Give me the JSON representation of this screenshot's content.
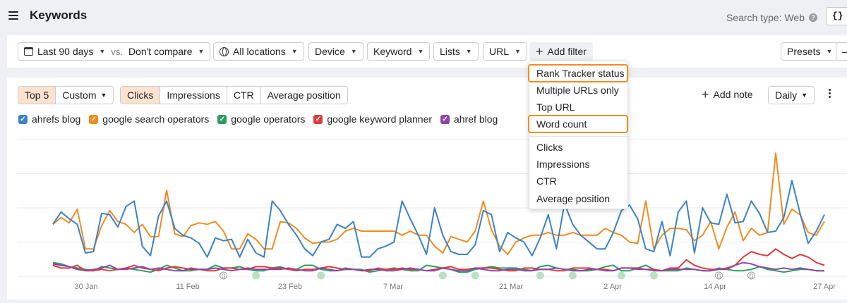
{
  "header": {
    "title": "Keywords",
    "search_type": "Search type: Web",
    "help": "?",
    "api_label": "{}"
  },
  "filters": {
    "date_range": "Last 90 days",
    "vs": "vs.",
    "compare": "Don't compare",
    "locations": "All locations",
    "device": "Device",
    "keyword": "Keyword",
    "lists": "Lists",
    "url": "URL",
    "add_filter": "Add filter",
    "presets": "Presets"
  },
  "add_filter_menu": {
    "items": [
      "Rank Tracker status",
      "Multiple URLs only",
      "Top URL",
      "Word count",
      "Clicks",
      "Impressions",
      "CTR",
      "Average position"
    ],
    "highlighted": [
      "Rank Tracker status",
      "Word count"
    ],
    "highlight_color": "#f28c1f"
  },
  "chart_controls": {
    "top_tabs": [
      "Top 5",
      "Custom"
    ],
    "top_active": "Top 5",
    "metric_tabs": [
      "Clicks",
      "Impressions",
      "CTR",
      "Average position"
    ],
    "metric_active": "Clicks",
    "add_note": "Add note",
    "interval": "Daily",
    "active_color": "#fbe3cf"
  },
  "chart_data": {
    "type": "line",
    "x_ticks": [
      "30 Jan",
      "11 Feb",
      "23 Feb",
      "7 Mar",
      "21 Mar",
      "2 Apr",
      "14 Apr",
      "27 Apr"
    ],
    "ylim": [
      0,
      100
    ],
    "grid": true,
    "legend_position": "top-left",
    "series": [
      {
        "name": "ahrefs blog",
        "color": "#3b82c6",
        "values": [
          38,
          47,
          42,
          38,
          17,
          18,
          46,
          45,
          36,
          51,
          55,
          22,
          15,
          44,
          55,
          35,
          30,
          28,
          24,
          14,
          28,
          26,
          27,
          14,
          27,
          17,
          14,
          55,
          48,
          38,
          30,
          20,
          15,
          25,
          27,
          38,
          35,
          40,
          14,
          14,
          20,
          22,
          25,
          55,
          42,
          30,
          16,
          50,
          30,
          18,
          16,
          16,
          23,
          48,
          45,
          18,
          32,
          28,
          25,
          15,
          28,
          45,
          20,
          53,
          38,
          30,
          25,
          20,
          20,
          32,
          48,
          52,
          42,
          20,
          18,
          40,
          15,
          47,
          55,
          17,
          50,
          39,
          38,
          60,
          39,
          40,
          55,
          46,
          32,
          33,
          43,
          70,
          46,
          24,
          33,
          45
        ]
      },
      {
        "name": "google search operators",
        "color": "#f28c1f",
        "values": [
          38,
          43,
          39,
          49,
          20,
          20,
          37,
          48,
          40,
          38,
          32,
          38,
          29,
          29,
          63,
          31,
          29,
          37,
          39,
          38,
          40,
          33,
          20,
          20,
          31,
          27,
          20,
          20,
          40,
          39,
          35,
          28,
          24,
          25,
          25,
          27,
          33,
          35,
          33,
          33,
          33,
          33,
          33,
          30,
          33,
          30,
          30,
          22,
          17,
          29,
          27,
          25,
          33,
          55,
          34,
          22,
          16,
          25,
          28,
          30,
          30,
          32,
          30,
          30,
          32,
          30,
          30,
          30,
          35,
          32,
          30,
          25,
          24,
          55,
          20,
          30,
          35,
          35,
          34,
          26,
          30,
          40,
          20,
          36,
          47,
          26,
          35,
          30,
          32,
          90,
          38,
          49,
          45,
          32,
          30,
          40
        ]
      },
      {
        "name": "google operators",
        "color": "#2a9d5c",
        "values": [
          10,
          9,
          7,
          6,
          5,
          4,
          7,
          6,
          5,
          6,
          5,
          4,
          3,
          5,
          8,
          6,
          4,
          4,
          5,
          5,
          8,
          6,
          6,
          7,
          5,
          4,
          4,
          6,
          7,
          5,
          5,
          8,
          8,
          5,
          4,
          4,
          6,
          5,
          5,
          3,
          4,
          5,
          6,
          5,
          4,
          4,
          8,
          7,
          6,
          5,
          3,
          3,
          5,
          6,
          7,
          6,
          6,
          6,
          5,
          4,
          7,
          8,
          6,
          5,
          5,
          4,
          4,
          5,
          7,
          8,
          4,
          4,
          6,
          8,
          5,
          4,
          4,
          4,
          6,
          5,
          4,
          4,
          6,
          5,
          4,
          4,
          5,
          7,
          5,
          4,
          3,
          4,
          5,
          5,
          4,
          4
        ]
      },
      {
        "name": "google keyword planner",
        "color": "#e03a3a",
        "values": [
          8,
          6,
          6,
          8,
          4,
          4,
          5,
          4,
          5,
          6,
          8,
          6,
          5,
          4,
          6,
          7,
          6,
          5,
          5,
          4,
          4,
          6,
          6,
          5,
          5,
          7,
          7,
          6,
          6,
          5,
          4,
          5,
          5,
          6,
          7,
          6,
          5,
          5,
          4,
          4,
          6,
          5,
          5,
          6,
          5,
          5,
          4,
          5,
          6,
          7,
          5,
          5,
          6,
          6,
          6,
          5,
          4,
          4,
          6,
          6,
          5,
          5,
          4,
          4,
          6,
          6,
          6,
          5,
          5,
          4,
          6,
          6,
          6,
          5,
          5,
          4,
          6,
          6,
          12,
          8,
          6,
          5,
          5,
          6,
          8,
          14,
          18,
          16,
          15,
          20,
          16,
          13,
          16,
          14,
          10,
          8
        ]
      },
      {
        "name": "ahref blog",
        "color": "#8e44ad",
        "values": [
          9,
          8,
          7,
          5,
          4,
          5,
          6,
          8,
          5,
          5,
          6,
          7,
          5,
          6,
          5,
          4,
          4,
          6,
          5,
          5,
          6,
          5,
          4,
          5,
          6,
          5,
          5,
          5,
          5,
          6,
          5,
          4,
          4,
          6,
          5,
          4,
          5,
          5,
          4,
          5,
          5,
          4,
          4,
          5,
          6,
          5,
          4,
          4,
          6,
          5,
          4,
          4,
          6,
          5,
          4,
          4,
          5,
          5,
          4,
          4,
          5,
          5,
          6,
          5,
          4,
          4,
          5,
          5,
          4,
          4,
          6,
          6,
          5,
          5,
          4,
          4,
          5,
          5,
          5,
          5,
          4,
          4,
          5,
          5,
          8,
          10,
          9,
          7,
          6,
          5,
          6,
          5,
          6,
          5,
          4,
          4
        ]
      }
    ],
    "annotations": [
      {
        "index": 21,
        "label": "G"
      },
      {
        "index": 25,
        "label": ""
      },
      {
        "index": 33,
        "label": ""
      },
      {
        "index": 48,
        "label": ""
      },
      {
        "index": 52,
        "label": ""
      },
      {
        "index": 60,
        "label": ""
      },
      {
        "index": 64,
        "label": ""
      },
      {
        "index": 70,
        "label": ""
      },
      {
        "index": 74,
        "label": ""
      },
      {
        "index": 82,
        "label": "G"
      },
      {
        "index": 86,
        "label": "G"
      }
    ]
  }
}
